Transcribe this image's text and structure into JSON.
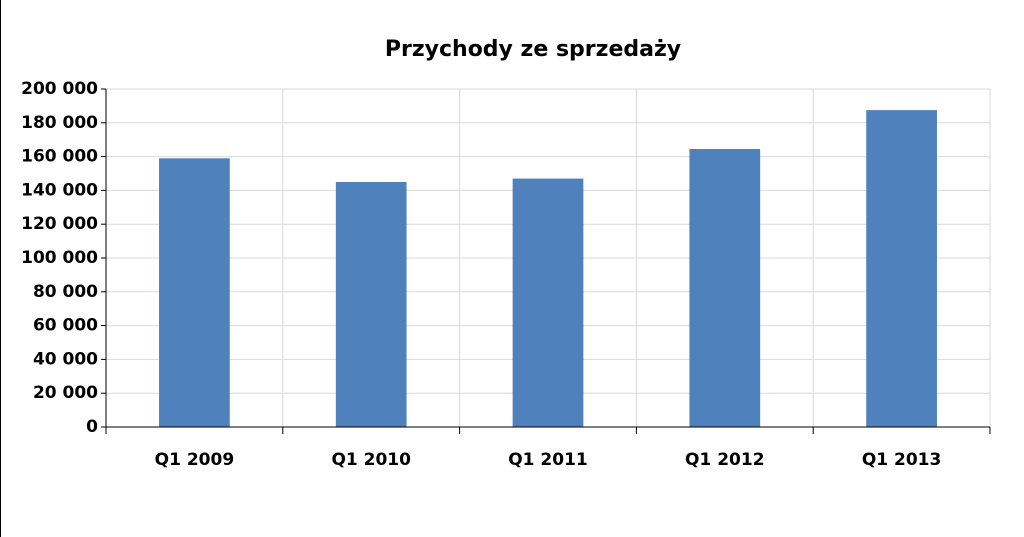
{
  "chart_data": {
    "type": "bar",
    "title": "Przychody ze sprzedaży",
    "categories": [
      "Q1 2009",
      "Q1 2010",
      "Q1 2011",
      "Q1 2012",
      "Q1 2013"
    ],
    "values": [
      159000,
      145000,
      147000,
      164500,
      187500
    ],
    "color": "#4f81bd",
    "ylim": [
      0,
      200000
    ],
    "yticks": [
      0,
      {
        "value": 20000,
        "label": "20 000"
      },
      {
        "value": 40000,
        "label": "40 000"
      },
      {
        "value": 60000,
        "label": "60 000"
      },
      {
        "value": 80000,
        "label": "80 000"
      },
      {
        "value": 100000,
        "label": "100 000"
      },
      {
        "value": 120000,
        "label": "120 000"
      },
      {
        "value": 140000,
        "label": "140 000"
      },
      {
        "value": 160000,
        "label": "160 000"
      },
      {
        "value": 180000,
        "label": "180 000"
      },
      {
        "value": 200000,
        "label": "200 000"
      }
    ],
    "grid": true
  }
}
